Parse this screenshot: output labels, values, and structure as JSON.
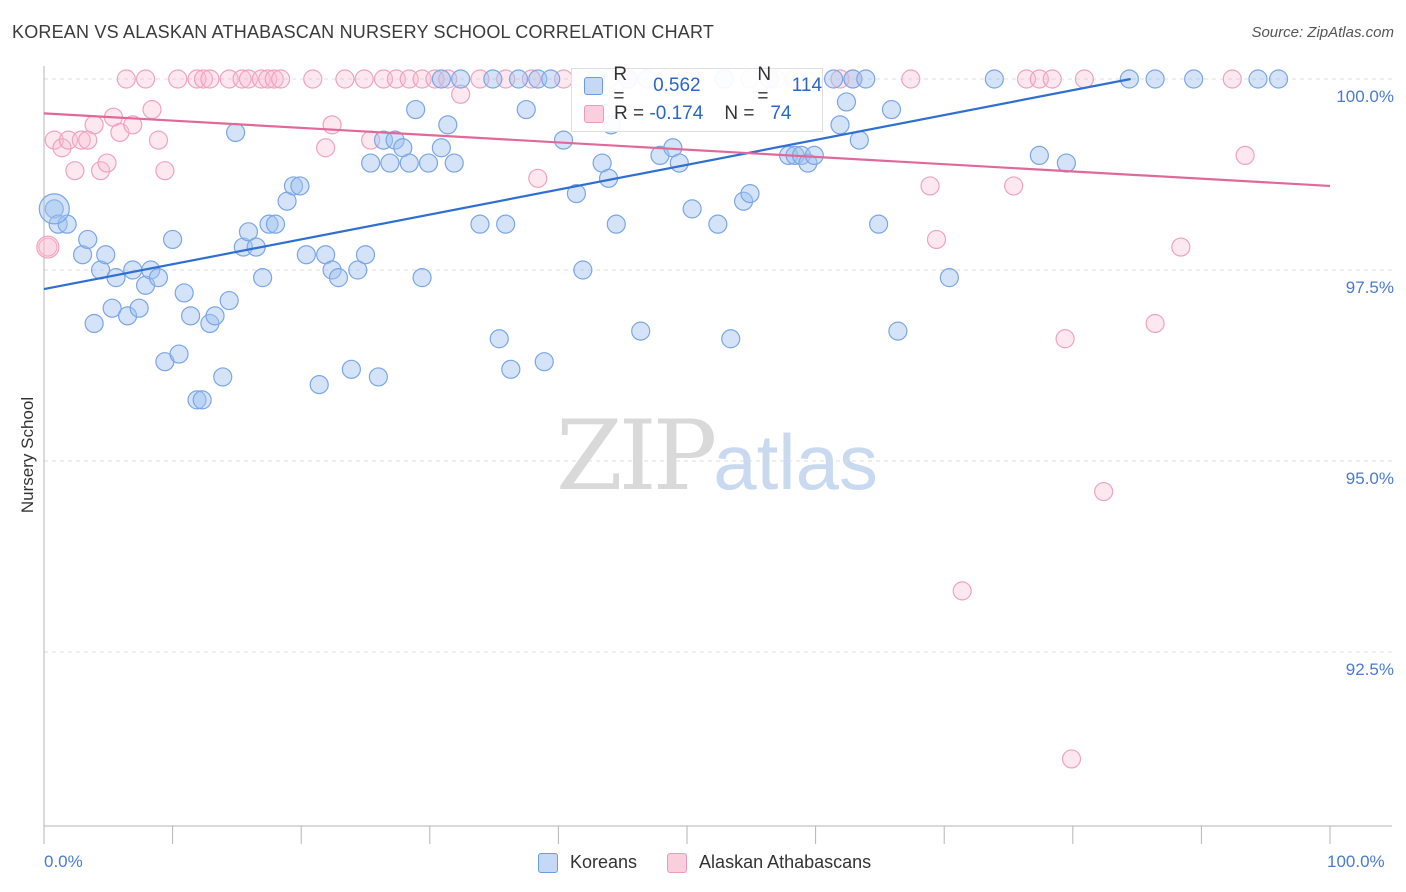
{
  "title": "KOREAN VS ALASKAN ATHABASCAN NURSERY SCHOOL CORRELATION CHART",
  "source": "Source: ZipAtlas.com",
  "watermark": {
    "zip": "ZIP",
    "atlas": "atlas"
  },
  "legend": {
    "r_label": "R =",
    "n_label": "N =",
    "rows": [
      {
        "r": "0.562",
        "n": "114"
      },
      {
        "r": "-0.174",
        "n": "74"
      }
    ]
  },
  "bottom_legend": [
    "Koreans",
    "Alaskan Athabascans"
  ],
  "chart_data": {
    "type": "scatter",
    "title": "KOREAN VS ALASKAN ATHABASCAN NURSERY SCHOOL CORRELATION CHART",
    "xlabel": "",
    "ylabel": "Nursery School",
    "xlim": [
      0,
      100
    ],
    "ylim": [
      90.2,
      100.4
    ],
    "x_tick_labels": [
      "0.0%",
      "100.0%"
    ],
    "y_ticks": [
      92.5,
      95.0,
      97.5,
      100.0
    ],
    "y_tick_labels": [
      "92.5%",
      "95.0%",
      "97.5%",
      "100.0%"
    ],
    "grid": true,
    "colors": {
      "koreans": "#6b9be0",
      "athabascans": "#ee9ab8",
      "koreans_line": "#2e6fd1",
      "athabascans_line": "#e0699a"
    },
    "series": [
      {
        "name": "Koreans",
        "r": 0.562,
        "n": 114,
        "trend": [
          [
            0,
            97.25
          ],
          [
            84.5,
            100.0
          ]
        ],
        "points": [
          [
            0.8,
            98.3
          ],
          [
            1.1,
            98.1
          ],
          [
            1.8,
            98.1
          ],
          [
            3.0,
            97.7
          ],
          [
            3.4,
            97.9
          ],
          [
            4.4,
            97.5
          ],
          [
            4.8,
            97.7
          ],
          [
            5.6,
            97.4
          ],
          [
            3.9,
            96.8
          ],
          [
            5.3,
            97.0
          ],
          [
            6.5,
            96.9
          ],
          [
            6.9,
            97.5
          ],
          [
            7.4,
            97.0
          ],
          [
            7.9,
            97.3
          ],
          [
            8.3,
            97.5
          ],
          [
            8.9,
            97.4
          ],
          [
            9.4,
            96.3
          ],
          [
            10.0,
            97.9
          ],
          [
            10.5,
            96.4
          ],
          [
            10.9,
            97.2
          ],
          [
            11.4,
            96.9
          ],
          [
            11.9,
            95.8
          ],
          [
            12.3,
            95.8
          ],
          [
            12.9,
            96.8
          ],
          [
            13.3,
            96.9
          ],
          [
            13.9,
            96.1
          ],
          [
            14.4,
            97.1
          ],
          [
            14.9,
            99.3
          ],
          [
            15.5,
            97.8
          ],
          [
            15.9,
            98.0
          ],
          [
            16.5,
            97.8
          ],
          [
            17.0,
            97.4
          ],
          [
            17.5,
            98.1
          ],
          [
            18.0,
            98.1
          ],
          [
            18.9,
            98.4
          ],
          [
            19.4,
            98.6
          ],
          [
            19.9,
            98.6
          ],
          [
            20.4,
            97.7
          ],
          [
            21.4,
            96.0
          ],
          [
            21.9,
            97.7
          ],
          [
            22.4,
            97.5
          ],
          [
            22.9,
            97.4
          ],
          [
            23.9,
            96.2
          ],
          [
            24.4,
            97.5
          ],
          [
            25.0,
            97.7
          ],
          [
            25.4,
            98.9
          ],
          [
            26.0,
            96.1
          ],
          [
            26.4,
            99.2
          ],
          [
            26.9,
            98.9
          ],
          [
            27.3,
            99.2
          ],
          [
            27.9,
            99.1
          ],
          [
            28.4,
            98.9
          ],
          [
            28.9,
            99.6
          ],
          [
            29.4,
            97.4
          ],
          [
            29.9,
            98.9
          ],
          [
            30.9,
            99.1
          ],
          [
            31.4,
            99.4
          ],
          [
            31.9,
            98.9
          ],
          [
            30.9,
            100.0
          ],
          [
            32.4,
            100.0
          ],
          [
            33.9,
            98.1
          ],
          [
            34.9,
            100.0
          ],
          [
            35.4,
            96.6
          ],
          [
            35.9,
            98.1
          ],
          [
            36.3,
            96.2
          ],
          [
            36.9,
            100.0
          ],
          [
            37.5,
            99.6
          ],
          [
            38.4,
            100.0
          ],
          [
            38.9,
            96.3
          ],
          [
            39.4,
            100.0
          ],
          [
            40.4,
            99.2
          ],
          [
            41.4,
            98.5
          ],
          [
            41.9,
            97.5
          ],
          [
            42.9,
            100.0
          ],
          [
            43.4,
            98.9
          ],
          [
            43.9,
            98.7
          ],
          [
            44.1,
            99.4
          ],
          [
            44.5,
            98.1
          ],
          [
            45.4,
            100.0
          ],
          [
            46.4,
            96.7
          ],
          [
            46.9,
            100.0
          ],
          [
            47.9,
            99.0
          ],
          [
            48.9,
            99.1
          ],
          [
            49.4,
            98.9
          ],
          [
            50.4,
            98.3
          ],
          [
            52.4,
            98.1
          ],
          [
            52.9,
            100.0
          ],
          [
            53.4,
            96.6
          ],
          [
            54.4,
            98.4
          ],
          [
            54.9,
            98.5
          ],
          [
            56.4,
            100.0
          ],
          [
            57.9,
            99.0
          ],
          [
            58.4,
            99.0
          ],
          [
            58.9,
            99.0
          ],
          [
            59.4,
            98.9
          ],
          [
            59.9,
            99.0
          ],
          [
            61.4,
            100.0
          ],
          [
            61.9,
            99.4
          ],
          [
            62.4,
            99.7
          ],
          [
            62.9,
            100.0
          ],
          [
            63.4,
            99.2
          ],
          [
            63.9,
            100.0
          ],
          [
            64.9,
            98.1
          ],
          [
            65.9,
            99.6
          ],
          [
            66.4,
            96.7
          ],
          [
            70.4,
            97.4
          ],
          [
            73.9,
            100.0
          ],
          [
            77.4,
            99.0
          ],
          [
            79.5,
            98.9
          ],
          [
            84.4,
            100.0
          ],
          [
            86.4,
            100.0
          ],
          [
            89.4,
            100.0
          ],
          [
            94.4,
            100.0
          ],
          [
            96.0,
            100.0
          ]
        ]
      },
      {
        "name": "Alaskan Athabascans",
        "r": -0.174,
        "n": 74,
        "trend": [
          [
            0,
            99.55
          ],
          [
            100,
            98.6
          ]
        ],
        "points": [
          [
            0.3,
            97.8
          ],
          [
            0.8,
            99.2
          ],
          [
            1.4,
            99.1
          ],
          [
            1.9,
            99.2
          ],
          [
            2.4,
            98.8
          ],
          [
            2.9,
            99.2
          ],
          [
            3.4,
            99.2
          ],
          [
            3.9,
            99.4
          ],
          [
            4.4,
            98.8
          ],
          [
            4.9,
            98.9
          ],
          [
            5.4,
            99.5
          ],
          [
            5.9,
            99.3
          ],
          [
            6.4,
            100.0
          ],
          [
            6.9,
            99.4
          ],
          [
            7.9,
            100.0
          ],
          [
            8.4,
            99.6
          ],
          [
            8.9,
            99.2
          ],
          [
            9.4,
            98.8
          ],
          [
            10.4,
            100.0
          ],
          [
            11.9,
            100.0
          ],
          [
            12.4,
            100.0
          ],
          [
            12.9,
            100.0
          ],
          [
            14.4,
            100.0
          ],
          [
            15.4,
            100.0
          ],
          [
            15.9,
            100.0
          ],
          [
            16.9,
            100.0
          ],
          [
            17.4,
            100.0
          ],
          [
            17.9,
            100.0
          ],
          [
            18.4,
            100.0
          ],
          [
            20.9,
            100.0
          ],
          [
            21.9,
            99.1
          ],
          [
            22.4,
            99.4
          ],
          [
            23.4,
            100.0
          ],
          [
            24.9,
            100.0
          ],
          [
            25.4,
            99.2
          ],
          [
            26.4,
            100.0
          ],
          [
            27.4,
            100.0
          ],
          [
            28.4,
            100.0
          ],
          [
            29.4,
            100.0
          ],
          [
            30.4,
            100.0
          ],
          [
            31.4,
            100.0
          ],
          [
            32.4,
            99.8
          ],
          [
            33.9,
            100.0
          ],
          [
            35.9,
            100.0
          ],
          [
            37.9,
            100.0
          ],
          [
            38.4,
            98.7
          ],
          [
            40.4,
            100.0
          ],
          [
            41.9,
            100.0
          ],
          [
            43.9,
            100.0
          ],
          [
            45.4,
            100.0
          ],
          [
            48.4,
            100.0
          ],
          [
            49.9,
            100.0
          ],
          [
            50.4,
            100.0
          ],
          [
            54.9,
            100.0
          ],
          [
            56.9,
            100.0
          ],
          [
            58.4,
            100.0
          ],
          [
            61.9,
            100.0
          ],
          [
            62.9,
            100.0
          ],
          [
            67.4,
            100.0
          ],
          [
            68.9,
            98.6
          ],
          [
            69.4,
            97.9
          ],
          [
            71.4,
            93.3
          ],
          [
            75.4,
            98.6
          ],
          [
            76.4,
            100.0
          ],
          [
            77.4,
            100.0
          ],
          [
            78.4,
            100.0
          ],
          [
            79.4,
            96.6
          ],
          [
            79.9,
            91.1
          ],
          [
            80.9,
            100.0
          ],
          [
            82.4,
            94.6
          ],
          [
            86.4,
            96.8
          ],
          [
            88.4,
            97.8
          ],
          [
            92.4,
            100.0
          ],
          [
            93.4,
            99.0
          ]
        ]
      }
    ]
  }
}
